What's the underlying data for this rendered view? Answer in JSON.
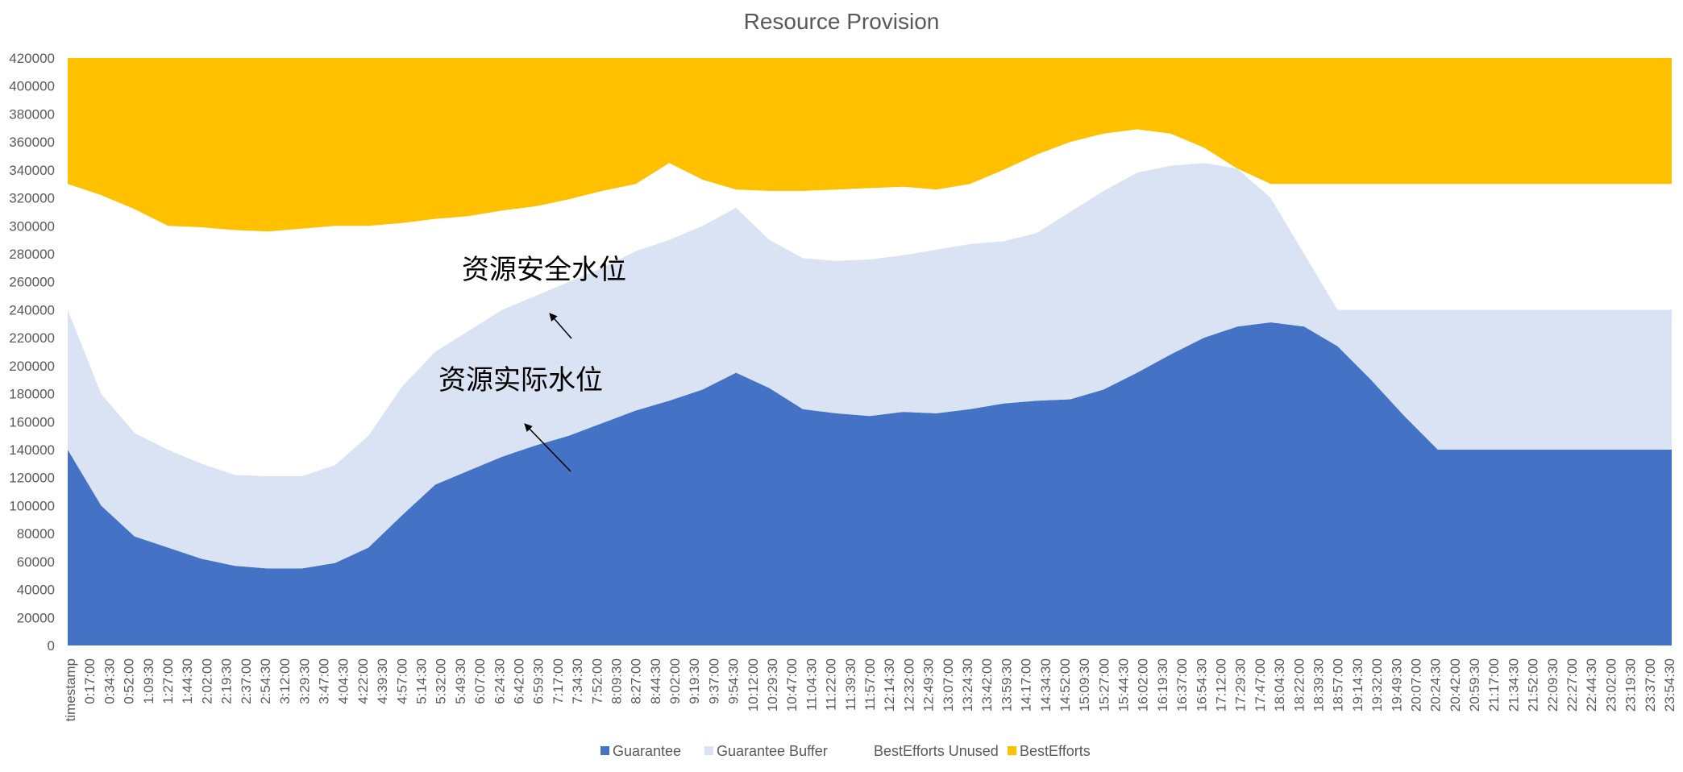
{
  "chart_data": {
    "type": "area",
    "stacked": true,
    "title": "Resource Provision",
    "xlabel": "",
    "ylabel": "",
    "ylim": [
      0,
      420000
    ],
    "y_ticks": [
      0,
      20000,
      40000,
      60000,
      80000,
      100000,
      120000,
      140000,
      160000,
      180000,
      200000,
      220000,
      240000,
      260000,
      280000,
      300000,
      320000,
      340000,
      360000,
      380000,
      400000,
      420000
    ],
    "x_tick_labels": [
      "timestamp",
      "0:17:00",
      "0:34:30",
      "0:52:00",
      "1:09:30",
      "1:27:00",
      "1:44:30",
      "2:02:00",
      "2:19:30",
      "2:37:00",
      "2:54:30",
      "3:12:00",
      "3:29:30",
      "3:47:00",
      "4:04:30",
      "4:22:00",
      "4:39:30",
      "4:57:00",
      "5:14:30",
      "5:32:00",
      "5:49:30",
      "6:07:00",
      "6:24:30",
      "6:42:00",
      "6:59:30",
      "7:17:00",
      "7:34:30",
      "7:52:00",
      "8:09:30",
      "8:27:00",
      "8:44:30",
      "9:02:00",
      "9:19:30",
      "9:37:00",
      "9:54:30",
      "10:12:00",
      "10:29:30",
      "10:47:00",
      "11:04:30",
      "11:22:00",
      "11:39:30",
      "11:57:00",
      "12:14:30",
      "12:32:00",
      "12:49:30",
      "13:07:00",
      "13:24:30",
      "13:42:00",
      "13:59:30",
      "14:17:00",
      "14:34:30",
      "14:52:00",
      "15:09:30",
      "15:27:00",
      "15:44:30",
      "16:02:00",
      "16:19:30",
      "16:37:00",
      "16:54:30",
      "17:12:00",
      "17:29:30",
      "17:47:00",
      "18:04:30",
      "18:22:00",
      "18:39:30",
      "18:57:00",
      "19:14:30",
      "19:32:00",
      "19:49:30",
      "20:07:00",
      "20:24:30",
      "20:42:00",
      "20:59:30",
      "21:17:00",
      "21:34:30",
      "21:52:00",
      "22:09:30",
      "22:27:00",
      "22:44:30",
      "23:02:00",
      "23:19:30",
      "23:37:00",
      "23:54:30"
    ],
    "x_hours": [
      0,
      0.5,
      1,
      1.5,
      2,
      2.5,
      3,
      3.5,
      4,
      4.5,
      5,
      5.5,
      6,
      6.5,
      7,
      7.5,
      8,
      8.5,
      9,
      9.5,
      10,
      10.5,
      11,
      11.5,
      12,
      12.5,
      13,
      13.5,
      14,
      14.5,
      15,
      15.5,
      16,
      16.5,
      17,
      17.5,
      18,
      18.5,
      19,
      19.5,
      20,
      20.5,
      21,
      21.5,
      22,
      22.5,
      23,
      23.5,
      24
    ],
    "series": [
      {
        "name": "Guarantee",
        "color": "#4472C4",
        "cumulative_top": [
          140000,
          100000,
          78000,
          70000,
          62000,
          57000,
          55000,
          55000,
          59000,
          70000,
          93000,
          115000,
          125000,
          135000,
          143000,
          150000,
          159000,
          168000,
          175000,
          183000,
          195000,
          184000,
          169000,
          166000,
          164000,
          167000,
          166000,
          169000,
          173000,
          175000,
          176000,
          183000,
          195000,
          208000,
          220000,
          228000,
          231000,
          228000,
          214000,
          190000,
          164000,
          140000,
          140000,
          140000,
          140000,
          140000,
          140000,
          140000,
          140000
        ]
      },
      {
        "name": "Guarantee Buffer",
        "color": "#DAE3F3",
        "cumulative_top": [
          240000,
          180000,
          152000,
          140000,
          130000,
          122000,
          121000,
          121000,
          129000,
          150000,
          185000,
          210000,
          225000,
          240000,
          250000,
          260000,
          270000,
          282000,
          290000,
          300000,
          313000,
          290000,
          277000,
          275000,
          276000,
          279000,
          283000,
          287000,
          289000,
          295000,
          310000,
          325000,
          338000,
          343000,
          345000,
          341000,
          320000,
          280000,
          240000,
          240000,
          240000,
          240000,
          240000,
          240000,
          240000,
          240000,
          240000,
          240000,
          240000
        ]
      },
      {
        "name": "BestEfforts Unused",
        "color": "#FFFFFF",
        "cumulative_top": [
          330000,
          322000,
          312000,
          300000,
          299000,
          297000,
          296000,
          298000,
          300000,
          300000,
          302000,
          305000,
          307000,
          311000,
          314000,
          319000,
          325000,
          330000,
          345000,
          333000,
          326000,
          325000,
          325000,
          326000,
          327000,
          328000,
          326000,
          330000,
          340000,
          351000,
          360000,
          366000,
          369000,
          366000,
          356000,
          341000,
          330000,
          330000,
          330000,
          330000,
          330000,
          330000,
          330000,
          330000,
          330000,
          330000,
          330000,
          330000,
          330000
        ]
      },
      {
        "name": "BestEfforts",
        "color": "#FFC000",
        "cumulative_top": [
          420000,
          420000,
          420000,
          420000,
          420000,
          420000,
          420000,
          420000,
          420000,
          420000,
          420000,
          420000,
          420000,
          420000,
          420000,
          420000,
          420000,
          420000,
          420000,
          420000,
          420000,
          420000,
          420000,
          420000,
          420000,
          420000,
          420000,
          420000,
          420000,
          420000,
          420000,
          420000,
          420000,
          420000,
          420000,
          420000,
          420000,
          420000,
          420000,
          420000,
          420000,
          420000,
          420000,
          420000,
          420000,
          420000,
          420000,
          420000,
          420000
        ]
      }
    ],
    "legend": {
      "position": "bottom",
      "entries": [
        "Guarantee",
        "Guarantee Buffer",
        "BestEfforts Unused",
        "BestEfforts"
      ]
    },
    "annotations": [
      {
        "text": "资源安全水位",
        "points_to": "Guarantee Buffer top"
      },
      {
        "text": "资源实际水位",
        "points_to": "Guarantee top"
      }
    ],
    "grid": false
  }
}
